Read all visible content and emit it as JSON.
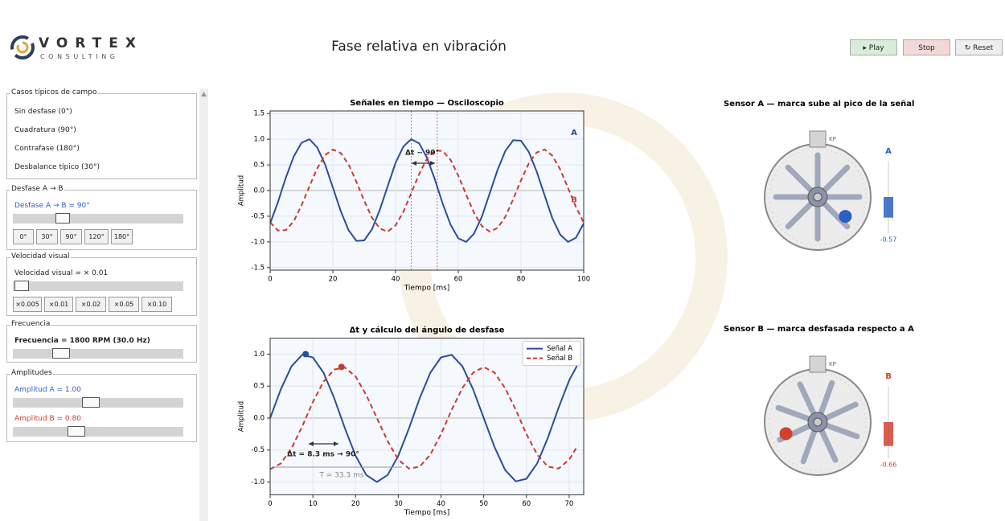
{
  "header": {
    "logo_name": "VORTEX",
    "logo_sub": "CONSULTING",
    "title": "Fase relativa en vibración",
    "buttons": [
      "▸ Play",
      "Stop",
      "↻ Reset"
    ]
  },
  "sidebar": {
    "cases": {
      "title": "Casos típicos de campo",
      "items": [
        "Sin desfase  (0°)",
        "Cuadratura  (90°)",
        "Contrafase  (180°)",
        "Desbalance típico  (30°)"
      ]
    },
    "phase": {
      "title": "Desfase  A → B",
      "label": "Desfase A → B = 90°",
      "buttons": [
        "0°",
        "30°",
        "90°",
        "120°",
        "180°"
      ]
    },
    "speed": {
      "title": "Velocidad visual",
      "label": "Velocidad visual = × 0.01",
      "buttons": [
        "×0.005",
        "×0.01",
        "×0.02",
        "×0.05",
        "×0.10"
      ]
    },
    "frequency": {
      "title": "Frecuencia",
      "label": "Frecuencia = 1800 RPM  (30.0 Hz)"
    },
    "amplitudes": {
      "title": "Amplitudes",
      "label_a": "Amplitud A = 1.00",
      "label_b": "Amplitud B = 0.80"
    }
  },
  "chart_data": [
    {
      "type": "line",
      "title": "Señales en tiempo — Osciloscopio",
      "x_label": "Tiempo [ms]",
      "y_label": "Amplitud",
      "x": [
        0,
        2.5,
        5,
        7.5,
        10,
        12.5,
        15,
        17.5,
        20,
        22.5,
        25,
        27.5,
        30,
        32.5,
        35,
        37.5,
        40,
        42.5,
        45,
        47.5,
        50,
        52.5,
        55,
        57.5,
        60,
        62.5,
        65,
        67.5,
        70,
        72.5,
        75,
        77.5,
        80,
        82.5,
        85,
        87.5,
        90,
        92.5,
        95,
        97.5,
        100
      ],
      "series": [
        {
          "name": "A",
          "color": "#2b4d9c",
          "dash": false,
          "values": [
            -0.64,
            -0.22,
            0.25,
            0.66,
            0.93,
            1.0,
            0.84,
            0.51,
            0.06,
            -0.4,
            -0.77,
            -0.98,
            -0.97,
            -0.75,
            -0.37,
            0.09,
            0.54,
            0.86,
            1.0,
            0.92,
            0.64,
            0.22,
            -0.25,
            -0.66,
            -0.93,
            -1.0,
            -0.84,
            -0.51,
            -0.06,
            0.4,
            0.77,
            0.98,
            0.97,
            0.75,
            0.37,
            -0.09,
            -0.54,
            -0.86,
            -1.0,
            -0.92,
            -0.64
          ]
        },
        {
          "name": "B",
          "color": "#cc3a2c",
          "dash": true,
          "values": [
            -0.62,
            -0.78,
            -0.77,
            -0.6,
            -0.29,
            0.08,
            0.43,
            0.69,
            0.8,
            0.73,
            0.51,
            0.17,
            -0.2,
            -0.53,
            -0.74,
            -0.8,
            -0.68,
            -0.41,
            -0.05,
            0.32,
            0.62,
            0.78,
            0.77,
            0.6,
            0.29,
            -0.08,
            -0.43,
            -0.69,
            -0.8,
            -0.73,
            -0.51,
            -0.17,
            0.2,
            0.53,
            0.74,
            0.8,
            0.68,
            0.41,
            0.05,
            -0.32,
            -0.62
          ]
        }
      ],
      "vlines": [
        {
          "x": 45,
          "color": "#7d97d6"
        },
        {
          "x": 53.3,
          "color": "#e06b6b"
        }
      ],
      "annotations": [
        "Δt ~ 90°"
      ],
      "legend": "inline",
      "xlim": [
        0,
        100
      ],
      "xticks": [
        0,
        20,
        40,
        60,
        80,
        100
      ],
      "ylim": [
        -1.55,
        1.55
      ],
      "yticks": [
        1.5,
        {
          "value": 1,
          "label": "1.0"
        },
        0.5,
        {
          "value": 0,
          "label": "0.0"
        },
        -0.5,
        {
          "value": -1,
          "label": "-1.0"
        },
        -1.5
      ],
      "grid": true
    },
    {
      "type": "line",
      "title": "Δt y cálculo del ángulo de desfase",
      "x_label": "Tiempo [ms]",
      "y_label": "Amplitud",
      "x": [
        0,
        2.5,
        5,
        7.5,
        10,
        12.5,
        15,
        17.5,
        20,
        22.5,
        25,
        27.5,
        30,
        32.5,
        35,
        37.5,
        40,
        42.5,
        45,
        47.5,
        50,
        52.5,
        55,
        57.5,
        60,
        62.5,
        65,
        67.5,
        70,
        72
      ],
      "series": [
        {
          "name": "Señal A",
          "color": "#2b4d9c",
          "dash": false,
          "values": [
            0.0,
            0.45,
            0.81,
            0.99,
            0.95,
            0.71,
            0.31,
            -0.16,
            -0.59,
            -0.89,
            -1.0,
            -0.89,
            -0.59,
            -0.16,
            0.31,
            0.71,
            0.95,
            0.99,
            0.81,
            0.45,
            0.0,
            -0.45,
            -0.81,
            -0.99,
            -0.95,
            -0.71,
            -0.31,
            0.16,
            0.59,
            0.84
          ]
        },
        {
          "name": "Señal B",
          "color": "#cc3a2c",
          "dash": true,
          "values": [
            -0.8,
            -0.71,
            -0.47,
            -0.13,
            0.25,
            0.57,
            0.76,
            0.79,
            0.65,
            0.36,
            0.0,
            -0.36,
            -0.65,
            -0.79,
            -0.76,
            -0.57,
            -0.25,
            0.13,
            0.47,
            0.71,
            0.8,
            0.71,
            0.47,
            0.13,
            -0.25,
            -0.57,
            -0.76,
            -0.79,
            -0.65,
            -0.43
          ]
        }
      ],
      "points": [
        {
          "x": 8.3,
          "y": 1.0,
          "color": "#2b4d9c"
        },
        {
          "x": 16.7,
          "y": 0.8,
          "color": "#cc3a2c"
        }
      ],
      "annotations": [
        "Δt = 8.3 ms → 90°",
        "T = 33.3 ms"
      ],
      "legend": "upper right",
      "xlim": [
        0,
        73.4
      ],
      "xticks": [
        0,
        10,
        20,
        30,
        40,
        50,
        60,
        70
      ],
      "ylim": [
        -1.2,
        1.25
      ],
      "yticks": [
        {
          "value": 1,
          "label": "1.0"
        },
        0.5,
        {
          "value": 0,
          "label": "0.0"
        },
        -0.5,
        {
          "value": -1,
          "label": "-1.0"
        }
      ],
      "grid": true
    },
    {
      "type": "sensor",
      "title": "Sensor A  —  marca sube al pico de la señal",
      "label": "A",
      "marker": "KP",
      "value": -0.57,
      "color": "#2b5fc4",
      "ylim": [
        -1,
        1
      ]
    },
    {
      "type": "sensor",
      "title": "Sensor B  —  marca desfasada respecto a A",
      "label": "B",
      "marker": "KP",
      "value": -0.66,
      "color": "#d2402f",
      "ylim": [
        -1,
        1
      ]
    }
  ]
}
